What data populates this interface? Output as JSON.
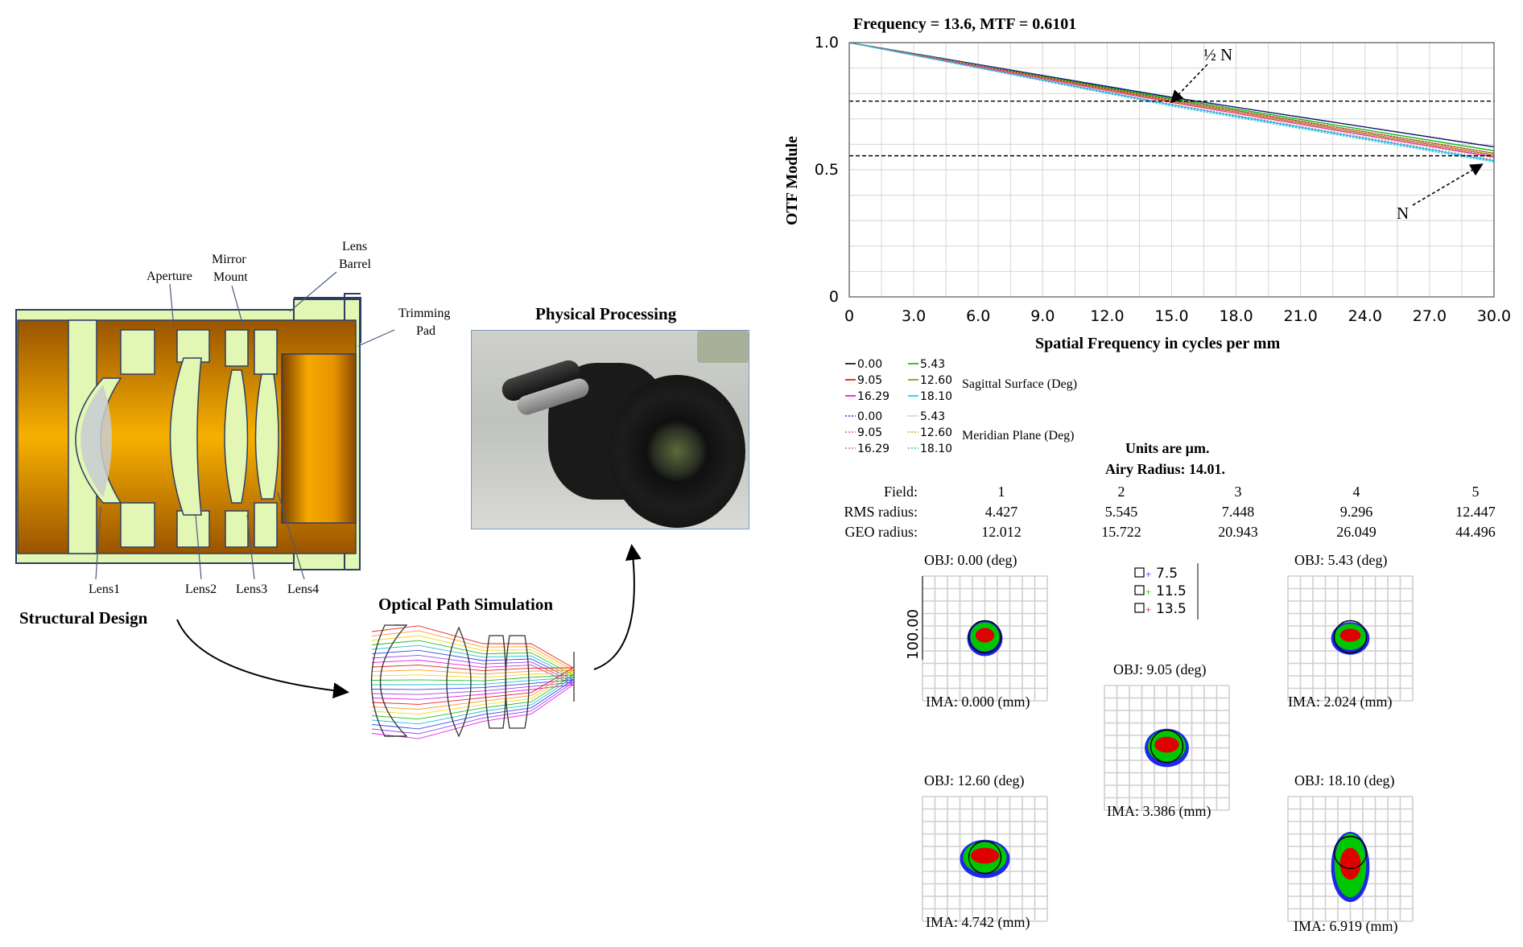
{
  "structural": {
    "caption": "Structural Design",
    "labels": {
      "aperture": "Aperture",
      "mirror_mount": [
        "Mirror",
        "Mount"
      ],
      "lens_barrel": [
        "Lens",
        "Barrel"
      ],
      "trimming_pad": [
        "Trimming",
        "Pad"
      ]
    },
    "lens_labels": [
      "Lens1",
      "Lens2",
      "Lens3",
      "Lens4"
    ],
    "colors": {
      "barrel": "#e2f7b4",
      "glass": "#c8ccd4",
      "orange": "#f5a800"
    }
  },
  "optical": {
    "caption": "Optical Path Simulation"
  },
  "physical": {
    "caption": "Physical Processing"
  },
  "mtf": {
    "title": "Frequency = 13.6, MTF = 0.6101",
    "xlabel": "Spatial Frequency in cycles per mm",
    "ylabel": "OTF Module",
    "x_ticks": [
      "0",
      "3.0",
      "6.0",
      "9.0",
      "12.0",
      "15.0",
      "18.0",
      "21.0",
      "24.0",
      "27.0",
      "30.0"
    ],
    "y_ticks": [
      "0",
      "0.5",
      "1.0"
    ],
    "annotations": {
      "half_n": "½ N",
      "n": "N"
    },
    "legend": {
      "sagittal_title": "Sagittal Surface (Deg)",
      "meridian_title": "Meridian Plane (Deg)",
      "left_fields": [
        "0.00",
        "9.05",
        "16.29"
      ],
      "right_fields": [
        "5.43",
        "12.60",
        "18.10"
      ]
    }
  },
  "chart_data": {
    "type": "line",
    "title": "Frequency = 13.6, MTF = 0.6101",
    "xlabel": "Spatial Frequency in cycles per mm",
    "ylabel": "OTF Module",
    "xlim": [
      0,
      30
    ],
    "ylim": [
      0,
      1.0
    ],
    "grid": true,
    "legend_placement": "below",
    "x": [
      0,
      15,
      30
    ],
    "series": [
      {
        "name": "0.00",
        "values": [
          1.0,
          0.785,
          0.59
        ],
        "color": "#000000",
        "style": "solid"
      },
      {
        "name": "5.43",
        "values": [
          1.0,
          0.78,
          0.575
        ],
        "color": "#00b400",
        "style": "solid"
      },
      {
        "name": "9.05",
        "values": [
          1.0,
          0.775,
          0.565
        ],
        "color": "#e00000",
        "style": "solid"
      },
      {
        "name": "12.60",
        "values": [
          1.0,
          0.77,
          0.558
        ],
        "color": "#a08000",
        "style": "solid"
      },
      {
        "name": "16.29",
        "values": [
          1.0,
          0.765,
          0.55
        ],
        "color": "#e000e0",
        "style": "solid"
      },
      {
        "name": "18.10",
        "values": [
          1.0,
          0.755,
          0.535
        ],
        "color": "#00c8e6",
        "style": "solid"
      },
      {
        "name": "0.00",
        "values": [
          1.0,
          0.785,
          0.59
        ],
        "color": "#1e28e6",
        "style": "dotted"
      },
      {
        "name": "5.43",
        "values": [
          1.0,
          0.775,
          0.565
        ],
        "color": "#78c878",
        "style": "dotted"
      },
      {
        "name": "9.05",
        "values": [
          1.0,
          0.77,
          0.555
        ],
        "color": "#e06464",
        "style": "dotted"
      },
      {
        "name": "12.60",
        "values": [
          1.0,
          0.765,
          0.548
        ],
        "color": "#d0a000",
        "style": "dotted"
      },
      {
        "name": "16.29",
        "values": [
          1.0,
          0.758,
          0.54
        ],
        "color": "#c864c8",
        "style": "dotted"
      },
      {
        "name": "18.10",
        "values": [
          1.0,
          0.75,
          0.53
        ],
        "color": "#32b4c8",
        "style": "dotted"
      }
    ],
    "reference_lines": [
      0.77,
      0.555
    ]
  },
  "spot": {
    "units": "Units are µm.",
    "airy": "Airy Radius: 14.01.",
    "table": {
      "rows": [
        {
          "label": "Field:",
          "values": [
            "1",
            "2",
            "3",
            "4",
            "5"
          ]
        },
        {
          "label": "RMS radius:",
          "values": [
            "4.427",
            "5.545",
            "7.448",
            "9.296",
            "12.447"
          ]
        },
        {
          "label": "GEO radius:",
          "values": [
            "12.012",
            "15.722",
            "20.943",
            "26.049",
            "44.496"
          ]
        }
      ]
    },
    "wavelength_legend": [
      "7.5",
      "11.5",
      "13.5"
    ],
    "scale_label": "100.00",
    "diagrams": [
      {
        "obj": "OBJ: 0.00 (deg)",
        "ima": "IMA: 0.000 (mm)"
      },
      {
        "obj": "OBJ: 5.43 (deg)",
        "ima": "IMA: 2.024 (mm)"
      },
      {
        "obj": "OBJ: 9.05 (deg)",
        "ima": "IMA: 3.386 (mm)"
      },
      {
        "obj": "OBJ: 12.60 (deg)",
        "ima": "IMA: 4.742 (mm)"
      },
      {
        "obj": "OBJ: 18.10 (deg)",
        "ima": "IMA: 6.919 (mm)"
      }
    ]
  }
}
